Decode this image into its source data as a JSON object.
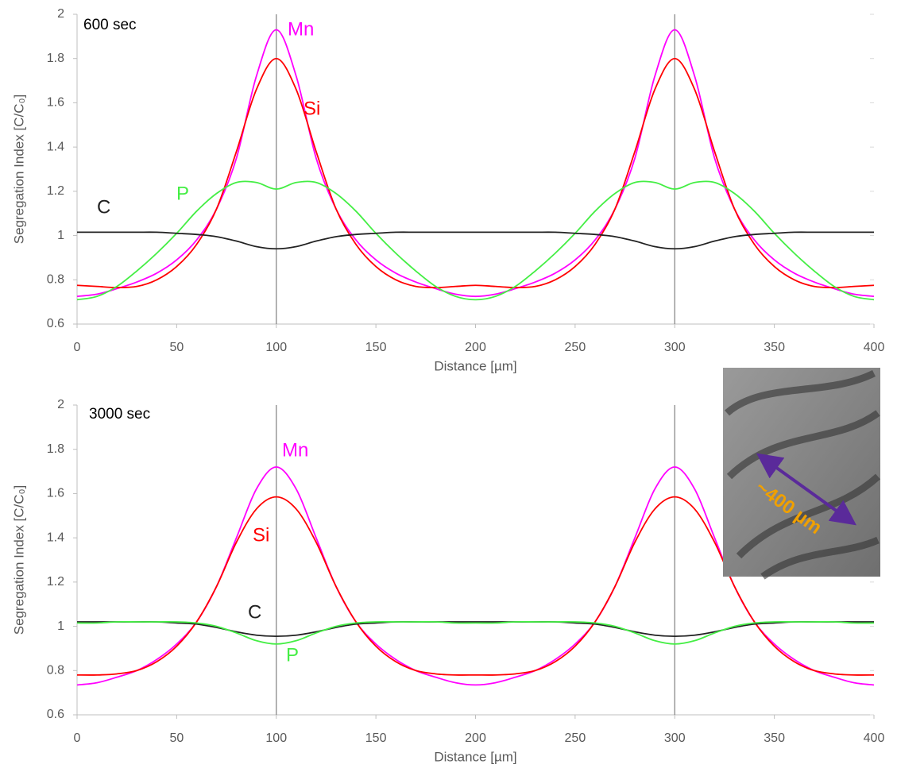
{
  "chart_data": [
    {
      "type": "line",
      "subtitle": "600 sec",
      "xlabel": "Distance [µm]",
      "ylabel": "Segregation Index [C/C₀]",
      "x": [
        0,
        10,
        20,
        30,
        40,
        50,
        60,
        70,
        80,
        90,
        100,
        110,
        120,
        130,
        140,
        150,
        160,
        170,
        180,
        190,
        200,
        210,
        220,
        230,
        240,
        250,
        260,
        270,
        280,
        290,
        300,
        310,
        320,
        330,
        340,
        350,
        360,
        370,
        380,
        390,
        400
      ],
      "xlim": [
        0,
        400
      ],
      "xticks": [
        0,
        50,
        100,
        150,
        200,
        250,
        300,
        350,
        400
      ],
      "ylim": [
        0.6,
        2
      ],
      "yticks": [
        0.6,
        0.8,
        1,
        1.2,
        1.4,
        1.6,
        1.8,
        2
      ],
      "vlines": [
        100,
        300
      ],
      "grid": false,
      "series": [
        {
          "name": "Mn",
          "color": "#ff00ff",
          "values": [
            0.725,
            0.735,
            0.76,
            0.79,
            0.83,
            0.89,
            0.98,
            1.12,
            1.35,
            1.72,
            1.93,
            1.72,
            1.35,
            1.12,
            0.98,
            0.89,
            0.83,
            0.79,
            0.76,
            0.735,
            0.725,
            0.735,
            0.76,
            0.79,
            0.83,
            0.89,
            0.98,
            1.12,
            1.35,
            1.72,
            1.93,
            1.72,
            1.35,
            1.12,
            0.98,
            0.89,
            0.83,
            0.79,
            0.76,
            0.735,
            0.725
          ]
        },
        {
          "name": "Si",
          "color": "#ff0000",
          "values": [
            0.775,
            0.77,
            0.765,
            0.77,
            0.8,
            0.86,
            0.96,
            1.12,
            1.38,
            1.66,
            1.8,
            1.66,
            1.38,
            1.12,
            0.96,
            0.86,
            0.8,
            0.77,
            0.765,
            0.77,
            0.775,
            0.77,
            0.765,
            0.77,
            0.8,
            0.86,
            0.96,
            1.12,
            1.38,
            1.66,
            1.8,
            1.66,
            1.38,
            1.12,
            0.96,
            0.86,
            0.8,
            0.77,
            0.765,
            0.77,
            0.775
          ]
        },
        {
          "name": "P",
          "color": "#44ee44",
          "values": [
            0.71,
            0.725,
            0.77,
            0.84,
            0.92,
            1.01,
            1.11,
            1.19,
            1.24,
            1.24,
            1.21,
            1.24,
            1.24,
            1.19,
            1.11,
            1.01,
            0.92,
            0.84,
            0.77,
            0.725,
            0.71,
            0.725,
            0.77,
            0.84,
            0.92,
            1.01,
            1.11,
            1.19,
            1.24,
            1.24,
            1.21,
            1.24,
            1.24,
            1.19,
            1.11,
            1.01,
            0.92,
            0.84,
            0.77,
            0.725,
            0.71
          ]
        },
        {
          "name": "C",
          "color": "#222222",
          "values": [
            1.015,
            1.015,
            1.015,
            1.015,
            1.015,
            1.01,
            1.005,
            0.995,
            0.975,
            0.95,
            0.94,
            0.95,
            0.975,
            0.995,
            1.005,
            1.01,
            1.015,
            1.015,
            1.015,
            1.015,
            1.015,
            1.015,
            1.015,
            1.015,
            1.015,
            1.01,
            1.005,
            0.995,
            0.975,
            0.95,
            0.94,
            0.95,
            0.975,
            0.995,
            1.005,
            1.01,
            1.015,
            1.015,
            1.015,
            1.015,
            1.015
          ]
        }
      ]
    },
    {
      "type": "line",
      "subtitle": "3000 sec",
      "xlabel": "Distance [µm]",
      "ylabel": "Segregation Index [C/C₀]",
      "x": [
        0,
        10,
        20,
        30,
        40,
        50,
        60,
        70,
        80,
        90,
        100,
        110,
        120,
        130,
        140,
        150,
        160,
        170,
        180,
        190,
        200,
        210,
        220,
        230,
        240,
        250,
        260,
        270,
        280,
        290,
        300,
        310,
        320,
        330,
        340,
        350,
        360,
        370,
        380,
        390,
        400
      ],
      "xlim": [
        0,
        400
      ],
      "xticks": [
        0,
        50,
        100,
        150,
        200,
        250,
        300,
        350,
        400
      ],
      "ylim": [
        0.6,
        2
      ],
      "yticks": [
        0.6,
        0.8,
        1,
        1.2,
        1.4,
        1.6,
        1.8,
        2
      ],
      "vlines": [
        100,
        300
      ],
      "grid": false,
      "series": [
        {
          "name": "Mn",
          "color": "#ff00ff",
          "values": [
            0.735,
            0.745,
            0.77,
            0.8,
            0.85,
            0.92,
            1.02,
            1.18,
            1.4,
            1.62,
            1.72,
            1.62,
            1.4,
            1.18,
            1.02,
            0.92,
            0.85,
            0.8,
            0.77,
            0.745,
            0.735,
            0.745,
            0.77,
            0.8,
            0.85,
            0.92,
            1.02,
            1.18,
            1.4,
            1.62,
            1.72,
            1.62,
            1.4,
            1.18,
            1.02,
            0.92,
            0.85,
            0.8,
            0.77,
            0.745,
            0.735
          ]
        },
        {
          "name": "Si",
          "color": "#ff0000",
          "values": [
            0.78,
            0.78,
            0.785,
            0.8,
            0.84,
            0.91,
            1.02,
            1.18,
            1.38,
            1.53,
            1.585,
            1.53,
            1.38,
            1.18,
            1.02,
            0.91,
            0.84,
            0.8,
            0.785,
            0.78,
            0.78,
            0.78,
            0.785,
            0.8,
            0.84,
            0.91,
            1.02,
            1.18,
            1.38,
            1.53,
            1.585,
            1.53,
            1.38,
            1.18,
            1.02,
            0.91,
            0.84,
            0.8,
            0.785,
            0.78,
            0.78
          ]
        },
        {
          "name": "C",
          "color": "#222222",
          "values": [
            1.02,
            1.02,
            1.02,
            1.02,
            1.02,
            1.015,
            1.01,
            0.995,
            0.975,
            0.96,
            0.955,
            0.96,
            0.975,
            0.995,
            1.01,
            1.015,
            1.02,
            1.02,
            1.02,
            1.02,
            1.02,
            1.02,
            1.02,
            1.02,
            1.02,
            1.015,
            1.01,
            0.995,
            0.975,
            0.96,
            0.955,
            0.96,
            0.975,
            0.995,
            1.01,
            1.015,
            1.02,
            1.02,
            1.02,
            1.02,
            1.02
          ]
        },
        {
          "name": "P",
          "color": "#44ee44",
          "values": [
            1.015,
            1.015,
            1.02,
            1.02,
            1.02,
            1.02,
            1.015,
            1.0,
            0.97,
            0.935,
            0.92,
            0.935,
            0.97,
            1.0,
            1.015,
            1.02,
            1.02,
            1.02,
            1.02,
            1.015,
            1.015,
            1.015,
            1.02,
            1.02,
            1.02,
            1.02,
            1.015,
            1.0,
            0.97,
            0.935,
            0.92,
            0.935,
            0.97,
            1.0,
            1.015,
            1.02,
            1.02,
            1.02,
            1.02,
            1.015,
            1.015
          ]
        }
      ]
    }
  ],
  "inset": {
    "label": "~400 µm"
  }
}
